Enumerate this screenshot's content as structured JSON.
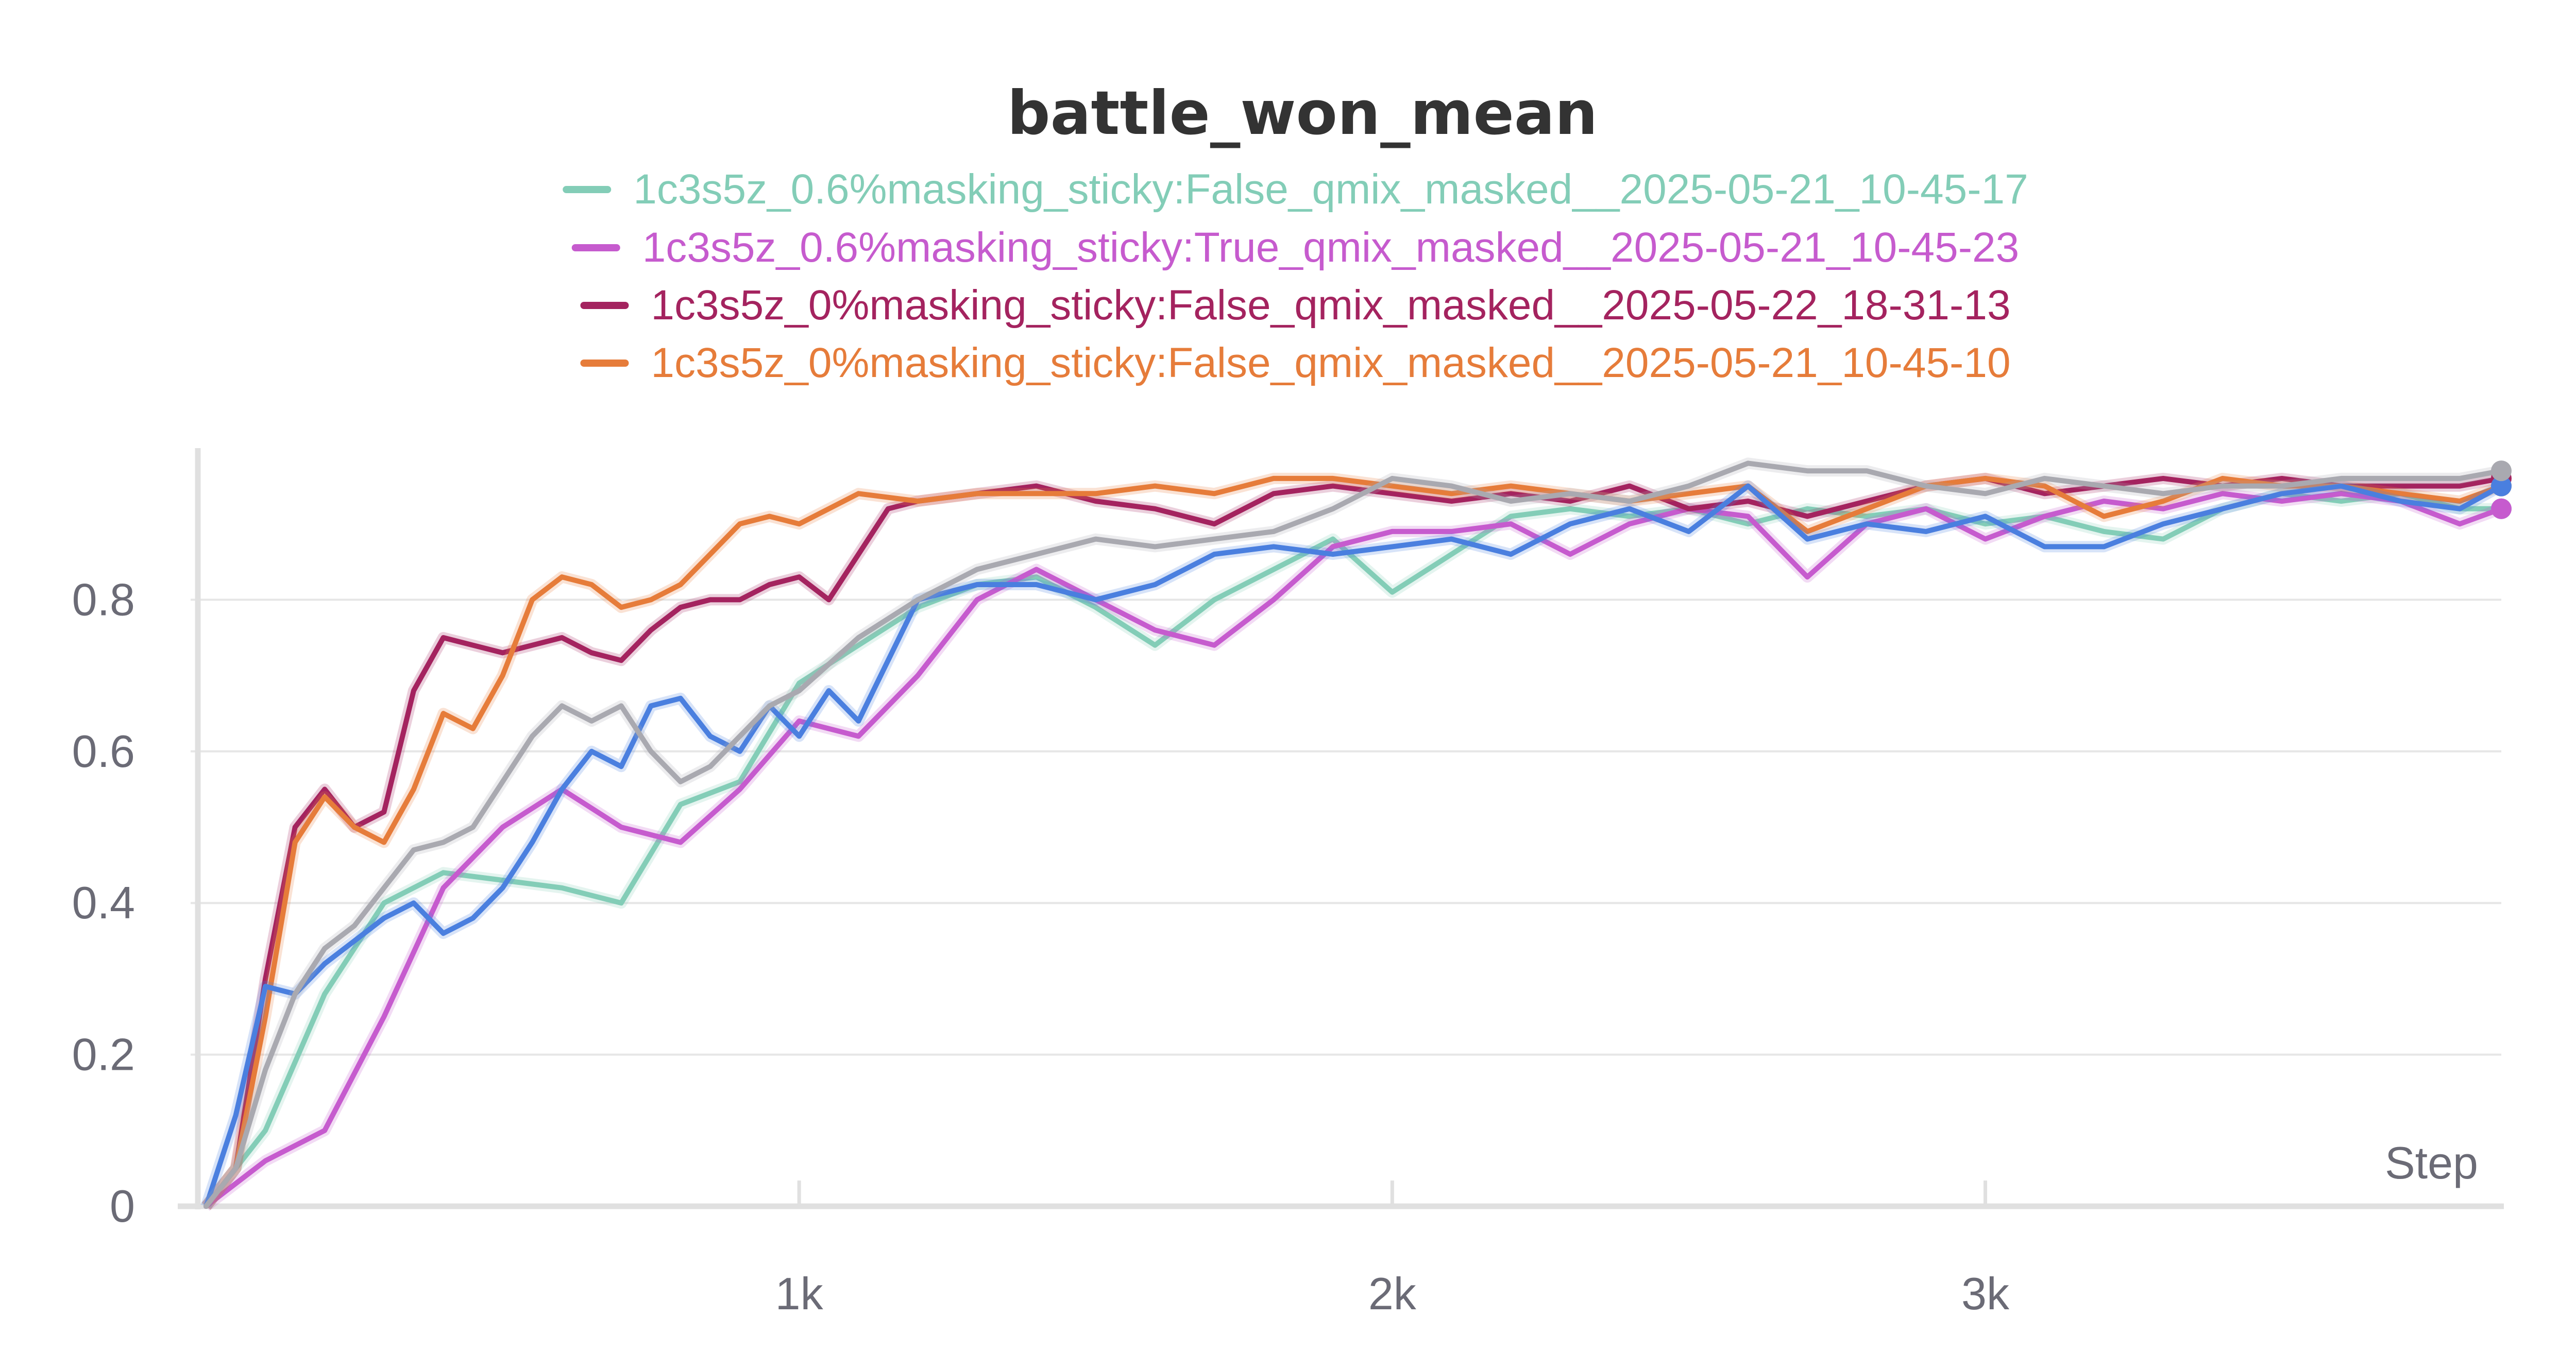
{
  "chart_data": {
    "type": "line",
    "title": "battle_won_mean",
    "xlabel": "Step",
    "ylabel": "",
    "xlim": [
      0,
      3870
    ],
    "ylim": [
      0,
      1.0
    ],
    "xticks": [
      {
        "value": 1000,
        "label": "1k"
      },
      {
        "value": 2000,
        "label": "2k"
      },
      {
        "value": 3000,
        "label": "3k"
      }
    ],
    "yticks": [
      {
        "value": 0,
        "label": "0"
      },
      {
        "value": 0.2,
        "label": "0.2"
      },
      {
        "value": 0.4,
        "label": "0.4"
      },
      {
        "value": 0.6,
        "label": "0.6"
      },
      {
        "value": 0.8,
        "label": "0.8"
      }
    ],
    "grid": true,
    "legend_position": "top",
    "series": [
      {
        "name": "1c3s5z_0.6%masking_sticky:False_qmix_masked__2025-05-21_10-45-17",
        "color": "#83cdb7",
        "in_legend": true,
        "x": [
          0,
          100,
          200,
          300,
          400,
          500,
          600,
          700,
          800,
          900,
          1000,
          1100,
          1200,
          1300,
          1400,
          1500,
          1600,
          1700,
          1800,
          1900,
          2000,
          2100,
          2200,
          2300,
          2400,
          2500,
          2600,
          2700,
          2800,
          2900,
          3000,
          3100,
          3200,
          3300,
          3400,
          3500,
          3600,
          3700,
          3800,
          3870
        ],
        "values": [
          0,
          0.1,
          0.28,
          0.4,
          0.44,
          0.43,
          0.42,
          0.4,
          0.53,
          0.56,
          0.69,
          0.74,
          0.79,
          0.82,
          0.83,
          0.79,
          0.74,
          0.8,
          0.84,
          0.88,
          0.81,
          0.86,
          0.91,
          0.92,
          0.91,
          0.92,
          0.9,
          0.92,
          0.91,
          0.92,
          0.9,
          0.91,
          0.89,
          0.88,
          0.92,
          0.94,
          0.93,
          0.94,
          0.92,
          0.92
        ]
      },
      {
        "name": "1c3s5z_0.6%masking_sticky:True_qmix_masked__2025-05-21_10-45-23",
        "color": "#c65bce",
        "in_legend": true,
        "x": [
          0,
          100,
          200,
          300,
          400,
          500,
          600,
          700,
          800,
          900,
          1000,
          1100,
          1200,
          1300,
          1400,
          1500,
          1600,
          1700,
          1800,
          1900,
          2000,
          2100,
          2200,
          2300,
          2400,
          2500,
          2600,
          2700,
          2800,
          2900,
          3000,
          3100,
          3200,
          3300,
          3400,
          3500,
          3600,
          3700,
          3800,
          3870
        ],
        "values": [
          0,
          0.06,
          0.1,
          0.25,
          0.42,
          0.5,
          0.55,
          0.5,
          0.48,
          0.55,
          0.64,
          0.62,
          0.7,
          0.8,
          0.84,
          0.8,
          0.76,
          0.74,
          0.8,
          0.87,
          0.89,
          0.89,
          0.9,
          0.86,
          0.9,
          0.92,
          0.91,
          0.83,
          0.9,
          0.92,
          0.88,
          0.91,
          0.93,
          0.92,
          0.94,
          0.93,
          0.94,
          0.93,
          0.9,
          0.92
        ]
      },
      {
        "name": "1c3s5z_0%masking_sticky:False_qmix_masked__2025-05-22_18-31-13",
        "color": "#a4235f",
        "in_legend": true,
        "x": [
          0,
          50,
          100,
          150,
          200,
          250,
          300,
          350,
          400,
          450,
          500,
          550,
          600,
          650,
          700,
          750,
          800,
          850,
          900,
          950,
          1000,
          1050,
          1100,
          1150,
          1200,
          1300,
          1400,
          1500,
          1600,
          1700,
          1800,
          1900,
          2000,
          2100,
          2200,
          2300,
          2400,
          2500,
          2600,
          2700,
          2800,
          2900,
          3000,
          3100,
          3200,
          3300,
          3400,
          3500,
          3600,
          3700,
          3800,
          3870
        ],
        "values": [
          0,
          0.05,
          0.3,
          0.5,
          0.55,
          0.5,
          0.52,
          0.68,
          0.75,
          0.74,
          0.73,
          0.74,
          0.75,
          0.73,
          0.72,
          0.76,
          0.79,
          0.8,
          0.8,
          0.82,
          0.83,
          0.8,
          0.86,
          0.92,
          0.93,
          0.94,
          0.95,
          0.93,
          0.92,
          0.9,
          0.94,
          0.95,
          0.94,
          0.93,
          0.94,
          0.93,
          0.95,
          0.92,
          0.93,
          0.91,
          0.93,
          0.95,
          0.96,
          0.94,
          0.95,
          0.96,
          0.95,
          0.96,
          0.95,
          0.95,
          0.95,
          0.96
        ]
      },
      {
        "name": "1c3s5z_0%masking_sticky:False_qmix_masked__2025-05-21_10-45-10",
        "color": "#e67c3a",
        "in_legend": true,
        "x": [
          0,
          50,
          100,
          150,
          200,
          250,
          300,
          350,
          400,
          450,
          500,
          550,
          600,
          650,
          700,
          750,
          800,
          850,
          900,
          950,
          1000,
          1050,
          1100,
          1200,
          1300,
          1400,
          1500,
          1600,
          1700,
          1800,
          1900,
          2000,
          2100,
          2200,
          2300,
          2400,
          2500,
          2600,
          2700,
          2800,
          2900,
          3000,
          3100,
          3200,
          3300,
          3400,
          3500,
          3600,
          3700,
          3800,
          3870
        ],
        "values": [
          0,
          0.05,
          0.25,
          0.48,
          0.54,
          0.5,
          0.48,
          0.55,
          0.65,
          0.63,
          0.7,
          0.8,
          0.83,
          0.82,
          0.79,
          0.8,
          0.82,
          0.86,
          0.9,
          0.91,
          0.9,
          0.92,
          0.94,
          0.93,
          0.94,
          0.94,
          0.94,
          0.95,
          0.94,
          0.96,
          0.96,
          0.95,
          0.94,
          0.95,
          0.94,
          0.93,
          0.94,
          0.95,
          0.89,
          0.92,
          0.95,
          0.96,
          0.95,
          0.91,
          0.93,
          0.96,
          0.95,
          0.95,
          0.94,
          0.93,
          0.95
        ]
      },
      {
        "name": "",
        "color": "#4a7fdf",
        "in_legend": false,
        "x": [
          0,
          50,
          100,
          150,
          200,
          250,
          300,
          350,
          400,
          450,
          500,
          550,
          600,
          650,
          700,
          750,
          800,
          850,
          900,
          950,
          1000,
          1050,
          1100,
          1150,
          1200,
          1300,
          1400,
          1500,
          1600,
          1700,
          1800,
          1900,
          2000,
          2100,
          2200,
          2300,
          2400,
          2500,
          2600,
          2700,
          2800,
          2900,
          3000,
          3100,
          3200,
          3300,
          3400,
          3500,
          3600,
          3700,
          3800,
          3870
        ],
        "values": [
          0,
          0.12,
          0.29,
          0.28,
          0.32,
          0.35,
          0.38,
          0.4,
          0.36,
          0.38,
          0.42,
          0.48,
          0.55,
          0.6,
          0.58,
          0.66,
          0.67,
          0.62,
          0.6,
          0.66,
          0.62,
          0.68,
          0.64,
          0.72,
          0.8,
          0.82,
          0.82,
          0.8,
          0.82,
          0.86,
          0.87,
          0.86,
          0.87,
          0.88,
          0.86,
          0.9,
          0.92,
          0.89,
          0.95,
          0.88,
          0.9,
          0.89,
          0.91,
          0.87,
          0.87,
          0.9,
          0.92,
          0.94,
          0.95,
          0.93,
          0.92,
          0.95
        ]
      },
      {
        "name": "",
        "color": "#a9a9b0",
        "in_legend": false,
        "x": [
          0,
          50,
          100,
          150,
          200,
          250,
          300,
          350,
          400,
          450,
          500,
          550,
          600,
          650,
          700,
          750,
          800,
          850,
          900,
          950,
          1000,
          1100,
          1200,
          1300,
          1400,
          1500,
          1600,
          1700,
          1800,
          1900,
          2000,
          2100,
          2200,
          2300,
          2400,
          2500,
          2600,
          2700,
          2800,
          2900,
          3000,
          3100,
          3200,
          3300,
          3400,
          3500,
          3600,
          3700,
          3800,
          3870
        ],
        "values": [
          0,
          0.05,
          0.18,
          0.28,
          0.34,
          0.37,
          0.42,
          0.47,
          0.48,
          0.5,
          0.56,
          0.62,
          0.66,
          0.64,
          0.66,
          0.6,
          0.56,
          0.58,
          0.62,
          0.66,
          0.68,
          0.75,
          0.8,
          0.84,
          0.86,
          0.88,
          0.87,
          0.88,
          0.89,
          0.92,
          0.96,
          0.95,
          0.93,
          0.94,
          0.93,
          0.95,
          0.98,
          0.97,
          0.97,
          0.95,
          0.94,
          0.96,
          0.95,
          0.94,
          0.95,
          0.95,
          0.96,
          0.96,
          0.96,
          0.97
        ]
      }
    ]
  }
}
